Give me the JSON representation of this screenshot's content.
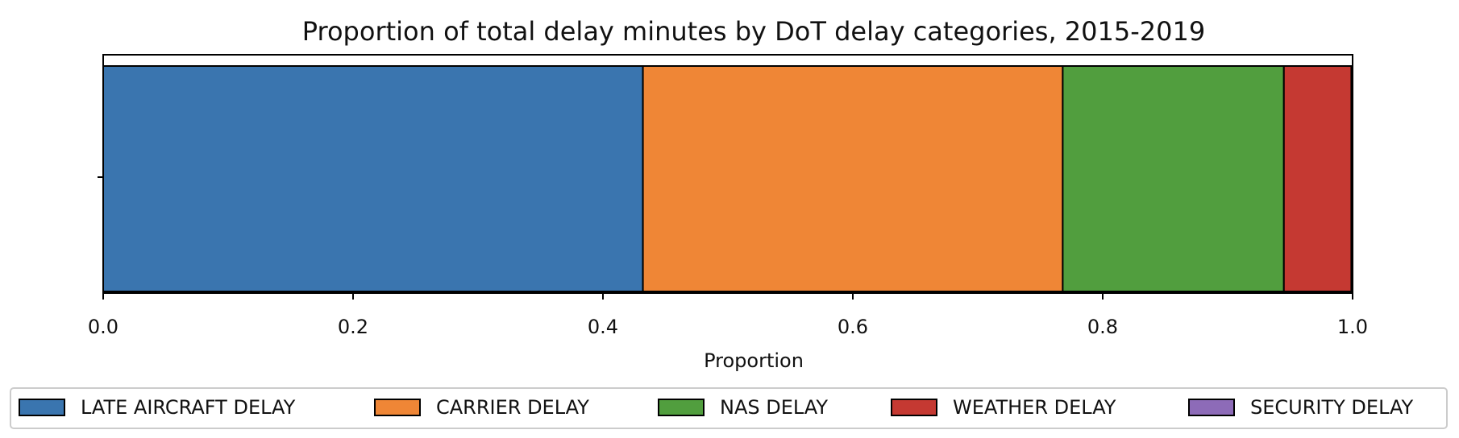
{
  "chart_data": {
    "type": "bar",
    "orientation": "horizontal",
    "stacked": true,
    "title": "Proportion of total delay minutes by DoT delay categories, 2015-2019",
    "xlabel": "Proportion",
    "ylabel": "",
    "xlim": [
      0,
      1
    ],
    "x_ticks": [
      "0.0",
      "0.2",
      "0.4",
      "0.6",
      "0.8",
      "1.0"
    ],
    "x_tick_values": [
      0,
      0.2,
      0.4,
      0.6,
      0.8,
      1.0
    ],
    "grid": false,
    "legend_position": "bottom",
    "series": [
      {
        "name": "LATE AIRCRAFT DELAY",
        "values": [
          0.432
        ],
        "color": "#3a75af"
      },
      {
        "name": "CARRIER DELAY",
        "values": [
          0.336
        ],
        "color": "#ef8636"
      },
      {
        "name": "NAS DELAY",
        "values": [
          0.177
        ],
        "color": "#519e3e"
      },
      {
        "name": "WEATHER DELAY",
        "values": [
          0.054
        ],
        "color": "#c53932"
      },
      {
        "name": "SECURITY DELAY",
        "values": [
          0.001
        ],
        "color": "#8d6bb8"
      }
    ]
  }
}
